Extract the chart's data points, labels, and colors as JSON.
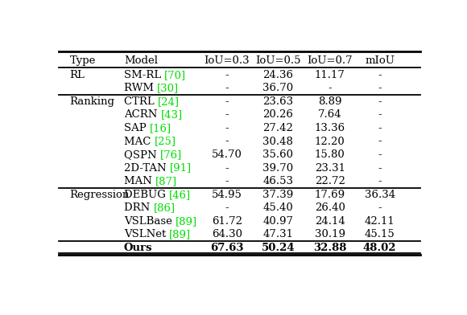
{
  "columns": [
    "Type",
    "Model",
    "IoU=0.3",
    "IoU=0.5",
    "IoU=0.7",
    "mIoU"
  ],
  "rows": [
    {
      "type": "RL",
      "model": "SM-RL",
      "ref": "70",
      "iou03": "-",
      "iou05": "24.36",
      "iou07": "11.17",
      "miou": "-"
    },
    {
      "type": "",
      "model": "RWM",
      "ref": "30",
      "iou03": "-",
      "iou05": "36.70",
      "iou07": "-",
      "miou": "-"
    },
    {
      "type": "Ranking",
      "model": "CTRL",
      "ref": "24",
      "iou03": "-",
      "iou05": "23.63",
      "iou07": "8.89",
      "miou": "-"
    },
    {
      "type": "",
      "model": "ACRN",
      "ref": "43",
      "iou03": "-",
      "iou05": "20.26",
      "iou07": "7.64",
      "miou": "-"
    },
    {
      "type": "",
      "model": "SAP",
      "ref": "16",
      "iou03": "-",
      "iou05": "27.42",
      "iou07": "13.36",
      "miou": "-"
    },
    {
      "type": "",
      "model": "MAC",
      "ref": "25",
      "iou03": "-",
      "iou05": "30.48",
      "iou07": "12.20",
      "miou": "-"
    },
    {
      "type": "",
      "model": "QSPN",
      "ref": "76",
      "iou03": "54.70",
      "iou05": "35.60",
      "iou07": "15.80",
      "miou": "-"
    },
    {
      "type": "",
      "model": "2D-TAN",
      "ref": "91",
      "iou03": "-",
      "iou05": "39.70",
      "iou07": "23.31",
      "miou": "-"
    },
    {
      "type": "",
      "model": "MAN",
      "ref": "87",
      "iou03": "-",
      "iou05": "46.53",
      "iou07": "22.72",
      "miou": "-"
    },
    {
      "type": "Regression",
      "model": "DEBUG",
      "ref": "46",
      "iou03": "54.95",
      "iou05": "37.39",
      "iou07": "17.69",
      "miou": "36.34"
    },
    {
      "type": "",
      "model": "DRN",
      "ref": "86",
      "iou03": "-",
      "iou05": "45.40",
      "iou07": "26.40",
      "miou": "-"
    },
    {
      "type": "",
      "model": "VSLBase",
      "ref": "89",
      "iou03": "61.72",
      "iou05": "40.97",
      "iou07": "24.14",
      "miou": "42.11"
    },
    {
      "type": "",
      "model": "VSLNet",
      "ref": "89",
      "iou03": "64.30",
      "iou05": "47.31",
      "iou07": "30.19",
      "miou": "45.15"
    },
    {
      "type": "",
      "model": "Ours",
      "ref": "",
      "iou03": "67.63",
      "iou05": "50.24",
      "iou07": "32.88",
      "miou": "48.02"
    }
  ],
  "section_separators_after": [
    1,
    8,
    12
  ],
  "ref_color": "#00dd00",
  "text_color": "#000000",
  "bg_color": "#ffffff",
  "font_size": 9.5,
  "header_font_size": 9.5
}
